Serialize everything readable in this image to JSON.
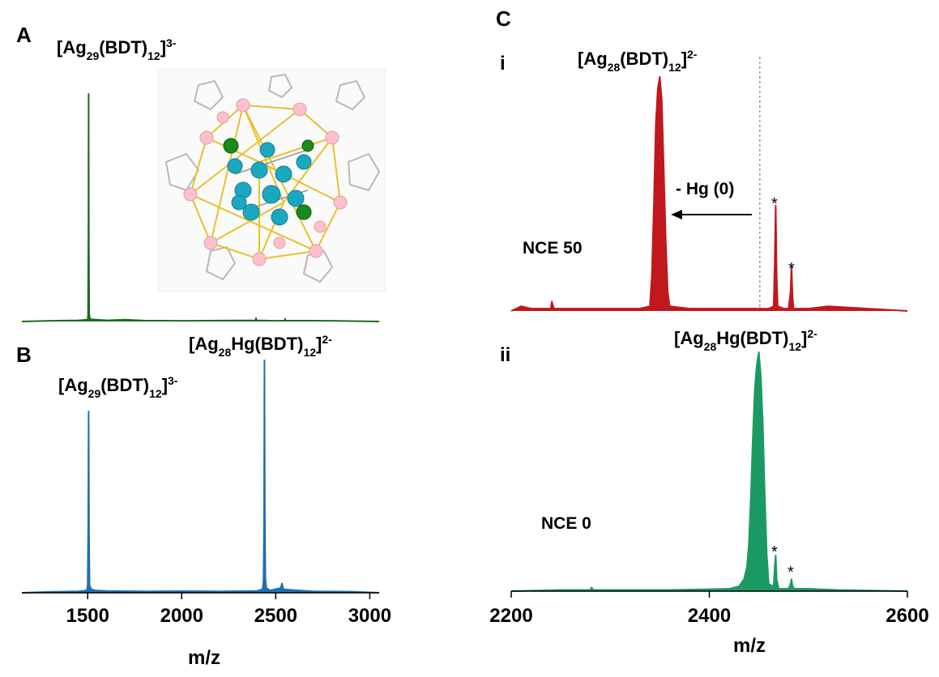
{
  "chart_data": [
    {
      "type": "line",
      "panel": "A",
      "peak_labels": [
        [
          "[Ag",
          {
            "sub": "29"
          },
          "(BDT)",
          {
            "sub": "12"
          },
          "]",
          {
            "sup": "3-"
          }
        ]
      ],
      "xlim": [
        1150,
        3050
      ],
      "ylim": [
        0,
        100
      ],
      "series": [
        {
          "color": "#1f6b1f",
          "x": [
            1150,
            1300,
            1450,
            1500,
            1502,
            1504,
            1505,
            1506,
            1508,
            1510,
            1515,
            1600,
            1700,
            1800,
            2000,
            2200,
            2393,
            2395,
            2397,
            2500,
            2548,
            2550,
            2552,
            2800,
            3050
          ],
          "values": [
            0,
            0.3,
            0.5,
            0.8,
            3,
            40,
            100,
            35,
            4,
            2,
            1,
            0.5,
            0.8,
            0.4,
            0.3,
            0.4,
            0.5,
            1.5,
            0.5,
            0.3,
            0.4,
            1.2,
            0.4,
            0.3,
            0
          ]
        }
      ]
    },
    {
      "type": "line",
      "panel": "B",
      "peak_labels": [
        [
          "[Ag",
          {
            "sub": "29"
          },
          "(BDT)",
          {
            "sub": "12"
          },
          "]",
          {
            "sup": "3-"
          }
        ],
        [
          "[Ag",
          {
            "sub": "28"
          },
          "Hg(BDT)",
          {
            "sub": "12"
          },
          "]",
          {
            "sup": "2-"
          }
        ]
      ],
      "xlabel": "m/z",
      "xlim": [
        1150,
        3050
      ],
      "xticks": [
        1500,
        2000,
        2500,
        3000
      ],
      "ylim": [
        0,
        100
      ],
      "series": [
        {
          "color": "#1f6fb0",
          "x": [
            1150,
            1300,
            1450,
            1495,
            1500,
            1503,
            1505,
            1507,
            1510,
            1520,
            1540,
            1600,
            1800,
            2000,
            2200,
            2400,
            2430,
            2435,
            2438,
            2440,
            2442,
            2445,
            2450,
            2470,
            2525,
            2530,
            2533,
            2536,
            2540,
            2700,
            2900,
            3050
          ],
          "values": [
            0,
            0.4,
            0.6,
            1,
            3,
            30,
            78,
            25,
            3,
            1.5,
            1,
            0.8,
            0.6,
            0.7,
            0.6,
            0.8,
            1.5,
            5,
            30,
            100,
            35,
            6,
            2,
            1,
            2,
            3,
            4,
            3,
            1.5,
            0.6,
            0.5,
            0
          ]
        }
      ]
    },
    {
      "type": "line",
      "panel": "C",
      "subpanel": "i",
      "peak_labels": [
        [
          "[Ag",
          {
            "sub": "28"
          },
          "(BDT)",
          {
            "sub": "12"
          },
          "]",
          {
            "sup": "2-"
          }
        ]
      ],
      "annotations": [
        "- Hg (0)",
        "NCE 50",
        "*",
        "*"
      ],
      "vline": 2451,
      "xlim": [
        2200,
        2600
      ],
      "ylim": [
        0,
        100
      ],
      "series": [
        {
          "color": "#c0181d",
          "x": [
            2200,
            2205,
            2210,
            2220,
            2240,
            2241,
            2243,
            2260,
            2300,
            2330,
            2340,
            2342,
            2344,
            2346,
            2348,
            2350,
            2352,
            2354,
            2356,
            2358,
            2360,
            2380,
            2420,
            2450,
            2460,
            2465,
            2466,
            2467,
            2468,
            2469,
            2475,
            2480,
            2482,
            2483,
            2484,
            2485,
            2500,
            2520,
            2560,
            2600
          ],
          "values": [
            0,
            1,
            2,
            1,
            1,
            4,
            1,
            1,
            1,
            1,
            2,
            15,
            45,
            80,
            95,
            100,
            90,
            60,
            30,
            8,
            2,
            1,
            1,
            1,
            1,
            2,
            20,
            45,
            15,
            2,
            1,
            1,
            8,
            19,
            6,
            1,
            1,
            2,
            1,
            0
          ]
        }
      ]
    },
    {
      "type": "line",
      "subpanel": "ii",
      "peak_labels": [
        [
          "[Ag",
          {
            "sub": "28"
          },
          "Hg(BDT)",
          {
            "sub": "12"
          },
          "]",
          {
            "sup": "2-"
          }
        ]
      ],
      "annotations": [
        "NCE 0",
        "*",
        "*"
      ],
      "xlabel": "m/z",
      "xlim": [
        2200,
        2600
      ],
      "xticks": [
        2200,
        2400,
        2600
      ],
      "ylim": [
        0,
        100
      ],
      "series": [
        {
          "color": "#1b9a63",
          "x": [
            2200,
            2250,
            2280,
            2281,
            2283,
            2320,
            2360,
            2400,
            2420,
            2430,
            2435,
            2438,
            2440,
            2442,
            2444,
            2446,
            2448,
            2450,
            2452,
            2454,
            2456,
            2458,
            2460,
            2465,
            2466,
            2467,
            2468,
            2470,
            2480,
            2482,
            2483,
            2484,
            2486,
            2500,
            2530,
            2600
          ],
          "values": [
            0,
            0.5,
            0.5,
            1.5,
            0.5,
            0.5,
            0.5,
            0.8,
            1,
            2,
            5,
            10,
            20,
            40,
            65,
            85,
            95,
            100,
            90,
            70,
            40,
            15,
            3,
            2,
            10,
            15,
            5,
            1,
            1,
            3,
            5,
            2,
            1,
            1,
            0.5,
            0
          ]
        }
      ]
    }
  ]
}
